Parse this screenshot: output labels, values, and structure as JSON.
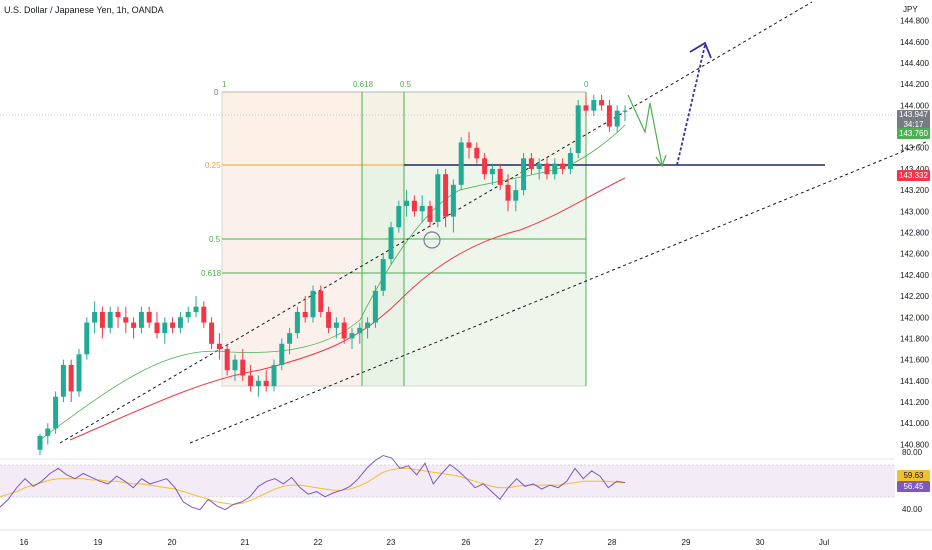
{
  "header": {
    "title": "U.S. Dollar / Japanese Yen, 1h, OANDA",
    "currency": "JPY"
  },
  "colors": {
    "up": "#22ab94",
    "down": "#f23645",
    "ma_green": "#4caf50",
    "ma_red": "#f23645",
    "price_tag": "#787b86",
    "green_tag": "#4caf50",
    "red_tag": "#f23645",
    "fib_orange": "#f0a330",
    "fib_green": "#4caf50",
    "horizontal_line": "#1c2a5e",
    "projection_green": "#4caf50",
    "projection_blue": "#3f2a9e",
    "rsi_line": "#7e57c2",
    "rsi_ma": "#f0c030"
  },
  "price_axis": {
    "ticks": [
      "144.800",
      "144.600",
      "144.400",
      "144.200",
      "144.000",
      "143.800",
      "143.600",
      "143.400",
      "143.200",
      "143.000",
      "142.800",
      "142.600",
      "142.400",
      "142.200",
      "142.000",
      "141.800",
      "141.600",
      "141.400",
      "141.200",
      "141.000",
      "140.800"
    ],
    "current_price": "143.947",
    "countdown": "34:17",
    "green_value": "143.760",
    "red_value": "143.332"
  },
  "rsi_axis": {
    "ticks": [
      "80.00",
      "40.00"
    ],
    "value_yellow": "59.63",
    "value_purple": "56.45"
  },
  "time_axis": {
    "ticks": [
      "16",
      "19",
      "20",
      "21",
      "22",
      "23",
      "26",
      "27",
      "28",
      "29",
      "30",
      "Jul"
    ]
  },
  "fib": {
    "time_top_labels": [
      "1",
      "0.618",
      "0.5",
      "0"
    ],
    "price_labels": [
      "0",
      "0.25",
      "0.5",
      "0.618"
    ]
  },
  "chart_data": {
    "type": "candlestick",
    "symbol": "USDJPY",
    "timeframe": "1h",
    "ylim": [
      140.7,
      144.9
    ],
    "rsi_ylim": [
      30,
      85
    ],
    "series": [
      {
        "name": "candles",
        "values": [
          [
            140.75,
            140.9,
            140.7,
            140.88
          ],
          [
            140.88,
            141.0,
            140.8,
            140.95
          ],
          [
            140.95,
            141.3,
            140.9,
            141.25
          ],
          [
            141.25,
            141.6,
            141.2,
            141.55
          ],
          [
            141.55,
            141.6,
            141.2,
            141.3
          ],
          [
            141.3,
            141.7,
            141.25,
            141.65
          ],
          [
            141.65,
            142.0,
            141.6,
            141.95
          ],
          [
            141.95,
            142.15,
            141.85,
            142.05
          ],
          [
            142.05,
            142.1,
            141.8,
            141.9
          ],
          [
            141.9,
            142.1,
            141.85,
            142.05
          ],
          [
            142.05,
            142.1,
            141.9,
            142.0
          ],
          [
            142.0,
            142.1,
            141.85,
            141.95
          ],
          [
            141.95,
            142.0,
            141.8,
            141.9
          ],
          [
            141.9,
            142.1,
            141.85,
            142.05
          ],
          [
            142.05,
            142.1,
            141.9,
            141.95
          ],
          [
            141.95,
            142.05,
            141.8,
            141.85
          ],
          [
            141.85,
            142.0,
            141.75,
            141.95
          ],
          [
            141.95,
            142.0,
            141.85,
            141.9
          ],
          [
            141.9,
            142.05,
            141.85,
            142.0
          ],
          [
            142.0,
            142.1,
            141.95,
            142.05
          ],
          [
            142.05,
            142.2,
            142.0,
            142.1
          ],
          [
            142.1,
            142.15,
            141.9,
            141.95
          ],
          [
            141.95,
            142.0,
            141.7,
            141.75
          ],
          [
            141.75,
            141.85,
            141.6,
            141.7
          ],
          [
            141.7,
            141.75,
            141.45,
            141.5
          ],
          [
            141.5,
            141.65,
            141.4,
            141.6
          ],
          [
            141.6,
            141.7,
            141.4,
            141.45
          ],
          [
            141.45,
            141.55,
            141.3,
            141.35
          ],
          [
            141.35,
            141.45,
            141.25,
            141.4
          ],
          [
            141.4,
            141.5,
            141.3,
            141.35
          ],
          [
            141.35,
            141.6,
            141.3,
            141.55
          ],
          [
            141.55,
            141.8,
            141.5,
            141.75
          ],
          [
            141.75,
            141.9,
            141.65,
            141.85
          ],
          [
            141.85,
            142.1,
            141.8,
            142.05
          ],
          [
            142.05,
            142.2,
            141.95,
            142.0
          ],
          [
            142.0,
            142.3,
            141.95,
            142.25
          ],
          [
            142.25,
            142.3,
            142.0,
            142.05
          ],
          [
            142.05,
            142.1,
            141.85,
            141.9
          ],
          [
            141.9,
            142.0,
            141.8,
            141.95
          ],
          [
            141.95,
            142.0,
            141.75,
            141.8
          ],
          [
            141.8,
            141.9,
            141.7,
            141.85
          ],
          [
            141.85,
            141.95,
            141.75,
            141.9
          ],
          [
            141.9,
            142.0,
            141.8,
            141.95
          ],
          [
            141.95,
            142.3,
            141.9,
            142.25
          ],
          [
            142.25,
            142.6,
            142.2,
            142.55
          ],
          [
            142.55,
            142.9,
            142.5,
            142.85
          ],
          [
            142.85,
            143.1,
            142.8,
            143.05
          ],
          [
            143.05,
            143.2,
            142.95,
            143.1
          ],
          [
            143.1,
            143.15,
            142.95,
            143.0
          ],
          [
            143.0,
            143.15,
            142.9,
            143.05
          ],
          [
            143.05,
            143.1,
            142.85,
            142.9
          ],
          [
            142.9,
            143.4,
            142.85,
            143.35
          ],
          [
            143.35,
            143.4,
            142.85,
            142.95
          ],
          [
            142.95,
            143.3,
            142.8,
            143.25
          ],
          [
            143.25,
            143.7,
            143.2,
            143.65
          ],
          [
            143.65,
            143.75,
            143.5,
            143.6
          ],
          [
            143.6,
            143.65,
            143.45,
            143.5
          ],
          [
            143.5,
            143.55,
            143.3,
            143.35
          ],
          [
            143.35,
            143.45,
            143.25,
            143.4
          ],
          [
            143.4,
            143.45,
            143.2,
            143.25
          ],
          [
            143.25,
            143.35,
            143.0,
            143.1
          ],
          [
            143.1,
            143.3,
            143.0,
            143.2
          ],
          [
            143.2,
            143.55,
            143.15,
            143.5
          ],
          [
            143.5,
            143.55,
            143.35,
            143.4
          ],
          [
            143.4,
            143.5,
            143.3,
            143.45
          ],
          [
            143.45,
            143.5,
            143.3,
            143.35
          ],
          [
            143.35,
            143.5,
            143.3,
            143.45
          ],
          [
            143.45,
            143.5,
            143.35,
            143.4
          ],
          [
            143.4,
            143.6,
            143.35,
            143.55
          ],
          [
            143.55,
            144.05,
            143.5,
            144.0
          ],
          [
            144.0,
            144.1,
            143.9,
            143.95
          ],
          [
            143.95,
            144.1,
            143.9,
            144.05
          ],
          [
            144.05,
            144.1,
            143.95,
            144.0
          ],
          [
            144.0,
            144.05,
            143.75,
            143.8
          ],
          [
            143.8,
            144.0,
            143.75,
            143.95
          ],
          [
            143.95,
            144.0,
            143.85,
            143.95
          ]
        ]
      },
      {
        "name": "rsi",
        "values": [
          40,
          46,
          55,
          62,
          56,
          60,
          66,
          70,
          65,
          62,
          66,
          63,
          60,
          58,
          64,
          60,
          55,
          62,
          58,
          60,
          62,
          55,
          44,
          40,
          38,
          46,
          41,
          38,
          42,
          44,
          48,
          56,
          60,
          62,
          58,
          63,
          55,
          50,
          52,
          48,
          51,
          53,
          56,
          62,
          70,
          76,
          80,
          78,
          70,
          72,
          65,
          74,
          58,
          66,
          73,
          68,
          62,
          55,
          58,
          52,
          46,
          55,
          62,
          56,
          58,
          54,
          57,
          55,
          60,
          70,
          62,
          68,
          64,
          55,
          60,
          59
        ]
      },
      {
        "name": "rsi_ma",
        "values": [
          48,
          50,
          52,
          55,
          57,
          59,
          61,
          62,
          62,
          62,
          62,
          61,
          61,
          60,
          60,
          59,
          58,
          58,
          57,
          56,
          55,
          54,
          52,
          50,
          48,
          46,
          44,
          43,
          42,
          43,
          45,
          48,
          51,
          54,
          56,
          57,
          57,
          56,
          55,
          54,
          53,
          53,
          54,
          56,
          59,
          63,
          67,
          69,
          70,
          70,
          69,
          68,
          67,
          66,
          65,
          64,
          62,
          60,
          58,
          56,
          55,
          55,
          56,
          57,
          57,
          57,
          57,
          57,
          58,
          59,
          60,
          60,
          60,
          60,
          59,
          59
        ]
      }
    ]
  }
}
